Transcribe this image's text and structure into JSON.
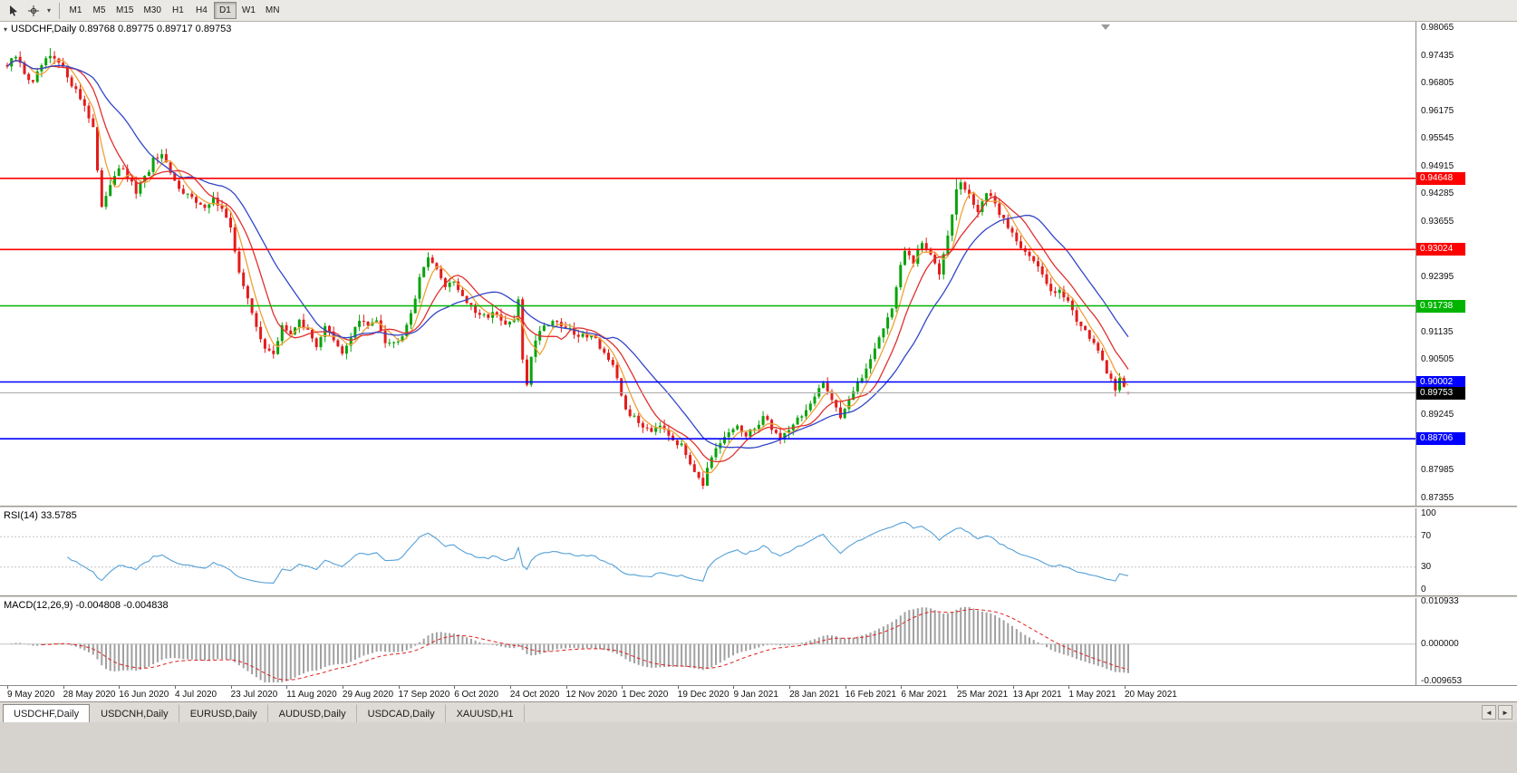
{
  "toolbar": {
    "timeframes": [
      "M1",
      "M5",
      "M15",
      "M30",
      "H1",
      "H4",
      "D1",
      "W1",
      "MN"
    ],
    "active_timeframe": "D1",
    "icons": [
      "cursor-icon",
      "crosshair-icon",
      "chevron-down-icon"
    ]
  },
  "chart": {
    "header": "USDCHF,Daily 0.89768 0.89775 0.89717 0.89753",
    "symbol": "USDCHF",
    "period": "Daily",
    "ohlc": {
      "open": "0.89768",
      "high": "0.89775",
      "low": "0.89717",
      "close": "0.89753"
    }
  },
  "chart_data": {
    "type": "candlestick",
    "symbol": "USDCHF",
    "timeframe": "Daily",
    "title": "USDCHF,Daily",
    "candles": 262,
    "last_quote": {
      "open": 0.89768,
      "high": 0.89775,
      "low": 0.89717,
      "close": 0.89753
    },
    "candle_colors": {
      "up": "#0aa30a",
      "down": "#e31c1c"
    },
    "y_axis": {
      "max": 0.98065,
      "min": 0.87355,
      "tick_step": 0.0063,
      "ticks": [
        "0.98065",
        "0.97435",
        "0.96805",
        "0.96175",
        "0.95545",
        "0.94915",
        "0.94285",
        "0.93655",
        "0.93025",
        "0.92395",
        "0.91765",
        "0.91135",
        "0.90505",
        "0.89875",
        "0.89245",
        "0.88615",
        "0.87985",
        "0.87355"
      ]
    },
    "x_axis_dates": [
      "9 May 2020",
      "28 May 2020",
      "16 Jun 2020",
      "4 Jul 2020",
      "23 Jul 2020",
      "11 Aug 2020",
      "29 Aug 2020",
      "17 Sep 2020",
      "6 Oct 2020",
      "24 Oct 2020",
      "12 Nov 2020",
      "1 Dec 2020",
      "19 Dec 2020",
      "9 Jan 2021",
      "28 Jan 2021",
      "16 Feb 2021",
      "6 Mar 2021",
      "25 Mar 2021",
      "13 Apr 2021",
      "1 May 2021",
      "20 May 2021"
    ],
    "horizontal_lines": [
      {
        "price": 0.94648,
        "label": "0.94648",
        "color": "#ff0000",
        "kind": "resistance"
      },
      {
        "price": 0.93024,
        "label": "0.93024",
        "color": "#ff0000",
        "kind": "resistance"
      },
      {
        "price": 0.91738,
        "label": "0.91738",
        "color": "#00b400",
        "kind": "pivot"
      },
      {
        "price": 0.90002,
        "label": "0.90002",
        "color": "#0000ff",
        "kind": "support"
      },
      {
        "price": 0.88706,
        "label": "0.88706",
        "color": "#0000ff",
        "kind": "support"
      }
    ],
    "bid_line": {
      "price": 0.89753,
      "label": "0.89753",
      "line_color": "#aaaaaa",
      "tag_bg": "#000000"
    },
    "moving_averages": [
      {
        "period": 5,
        "color": "#efa138",
        "name": "ma-fast"
      },
      {
        "period": 10,
        "color": "#e03030",
        "name": "ma-mid"
      },
      {
        "period": 20,
        "color": "#3246c8",
        "name": "ma-slow"
      }
    ],
    "price_path": [
      [
        0,
        0.972
      ],
      [
        2,
        0.9742
      ],
      [
        4,
        0.9706
      ],
      [
        6,
        0.968
      ],
      [
        8,
        0.9722
      ],
      [
        10,
        0.974
      ],
      [
        12,
        0.9726
      ],
      [
        14,
        0.97
      ],
      [
        16,
        0.9664
      ],
      [
        18,
        0.9632
      ],
      [
        20,
        0.9582
      ],
      [
        21,
        0.948
      ],
      [
        22,
        0.9392
      ],
      [
        23,
        0.9428
      ],
      [
        24,
        0.9455
      ],
      [
        26,
        0.9492
      ],
      [
        28,
        0.9466
      ],
      [
        30,
        0.9434
      ],
      [
        32,
        0.9464
      ],
      [
        34,
        0.9506
      ],
      [
        36,
        0.9512
      ],
      [
        39,
        0.9456
      ],
      [
        42,
        0.9428
      ],
      [
        45,
        0.9398
      ],
      [
        48,
        0.9418
      ],
      [
        50,
        0.9394
      ],
      [
        52,
        0.9346
      ],
      [
        54,
        0.9256
      ],
      [
        56,
        0.9186
      ],
      [
        58,
        0.9124
      ],
      [
        60,
        0.9082
      ],
      [
        62,
        0.9058
      ],
      [
        64,
        0.9132
      ],
      [
        66,
        0.9104
      ],
      [
        68,
        0.9148
      ],
      [
        70,
        0.9112
      ],
      [
        72,
        0.9084
      ],
      [
        74,
        0.913
      ],
      [
        76,
        0.9092
      ],
      [
        78,
        0.9062
      ],
      [
        80,
        0.9106
      ],
      [
        82,
        0.914
      ],
      [
        84,
        0.9126
      ],
      [
        86,
        0.9148
      ],
      [
        88,
        0.9096
      ],
      [
        90,
        0.9088
      ],
      [
        92,
        0.9112
      ],
      [
        94,
        0.916
      ],
      [
        96,
        0.9232
      ],
      [
        98,
        0.9292
      ],
      [
        100,
        0.9252
      ],
      [
        102,
        0.9222
      ],
      [
        104,
        0.9232
      ],
      [
        106,
        0.9196
      ],
      [
        108,
        0.917
      ],
      [
        110,
        0.9146
      ],
      [
        113,
        0.9158
      ],
      [
        116,
        0.9128
      ],
      [
        118,
        0.9142
      ],
      [
        119,
        0.9182
      ],
      [
        120,
        0.9052
      ],
      [
        121,
        0.8998
      ],
      [
        122,
        0.9062
      ],
      [
        124,
        0.9122
      ],
      [
        127,
        0.9142
      ],
      [
        130,
        0.9124
      ],
      [
        133,
        0.9102
      ],
      [
        136,
        0.9112
      ],
      [
        139,
        0.9068
      ],
      [
        141,
        0.9032
      ],
      [
        144,
        0.8938
      ],
      [
        147,
        0.8906
      ],
      [
        150,
        0.8892
      ],
      [
        152,
        0.8908
      ],
      [
        155,
        0.8872
      ],
      [
        157,
        0.8852
      ],
      [
        159,
        0.8818
      ],
      [
        161,
        0.8786
      ],
      [
        162,
        0.8768
      ],
      [
        163,
        0.88
      ],
      [
        165,
        0.8842
      ],
      [
        167,
        0.8872
      ],
      [
        170,
        0.8902
      ],
      [
        172,
        0.8872
      ],
      [
        174,
        0.8896
      ],
      [
        176,
        0.8922
      ],
      [
        178,
        0.8896
      ],
      [
        180,
        0.8872
      ],
      [
        183,
        0.8906
      ],
      [
        186,
        0.8936
      ],
      [
        188,
        0.8962
      ],
      [
        190,
        0.8996
      ],
      [
        192,
        0.8966
      ],
      [
        194,
        0.8922
      ],
      [
        196,
        0.8962
      ],
      [
        198,
        0.8992
      ],
      [
        200,
        0.9032
      ],
      [
        202,
        0.9082
      ],
      [
        204,
        0.9122
      ],
      [
        206,
        0.9172
      ],
      [
        208,
        0.9262
      ],
      [
        209,
        0.9298
      ],
      [
        211,
        0.9272
      ],
      [
        213,
        0.9318
      ],
      [
        215,
        0.9286
      ],
      [
        217,
        0.9252
      ],
      [
        219,
        0.9342
      ],
      [
        221,
        0.9436
      ],
      [
        222,
        0.9456
      ],
      [
        224,
        0.9422
      ],
      [
        226,
        0.9392
      ],
      [
        228,
        0.9432
      ],
      [
        230,
        0.9402
      ],
      [
        232,
        0.9372
      ],
      [
        235,
        0.9322
      ],
      [
        238,
        0.9292
      ],
      [
        241,
        0.9242
      ],
      [
        243,
        0.9206
      ],
      [
        245,
        0.9216
      ],
      [
        247,
        0.9182
      ],
      [
        249,
        0.9142
      ],
      [
        251,
        0.9122
      ],
      [
        253,
        0.9088
      ],
      [
        255,
        0.9042
      ],
      [
        257,
        0.9006
      ],
      [
        258,
        0.8986
      ],
      [
        259,
        0.9012
      ],
      [
        260,
        0.8992
      ],
      [
        261,
        0.89753
      ]
    ],
    "wick_pins": [
      {
        "index": 10,
        "price": 0.9762,
        "side": "high"
      },
      {
        "index": 98,
        "price": 0.9296,
        "side": "high"
      },
      {
        "index": 162,
        "price": 0.8758,
        "side": "low"
      },
      {
        "index": 221,
        "price": 0.94648,
        "side": "high"
      }
    ],
    "indicators": [
      {
        "name": "RSI",
        "label": "RSI(14) 33.5785",
        "period": 14,
        "value": 33.5785,
        "levels": [
          70,
          30
        ],
        "scale_min": 0,
        "scale_max": 100,
        "scale_ticks": [
          {
            "value": 100,
            "label": "100"
          },
          {
            "value": 70,
            "label": "70"
          },
          {
            "value": 30,
            "label": "30"
          },
          {
            "value": 0,
            "label": "0"
          }
        ],
        "color": "#54a0d8"
      },
      {
        "name": "MACD",
        "label": "MACD(12,26,9) -0.004808 -0.004838",
        "macd_value": -0.004808,
        "signal_value": -0.004838,
        "scale_max": 0.010933,
        "scale_min": -0.009653,
        "scale_ticks": [
          {
            "value": 0.010933,
            "label": "0.010933"
          },
          {
            "value": 0,
            "label": "0.000000"
          },
          {
            "value": -0.009653,
            "label": "-0.009653"
          }
        ],
        "histogram_color": "#a0a0a0",
        "signal_color": "#e02020"
      }
    ]
  },
  "tabs": {
    "items": [
      {
        "label": "USDCHF,Daily",
        "active": true
      },
      {
        "label": "USDCNH,Daily",
        "active": false
      },
      {
        "label": "EURUSD,Daily",
        "active": false
      },
      {
        "label": "AUDUSD,Daily",
        "active": false
      },
      {
        "label": "USDCAD,Daily",
        "active": false
      },
      {
        "label": "XAUUSD,H1",
        "active": false
      }
    ],
    "scroll_left": "◄",
    "scroll_right": "►"
  }
}
